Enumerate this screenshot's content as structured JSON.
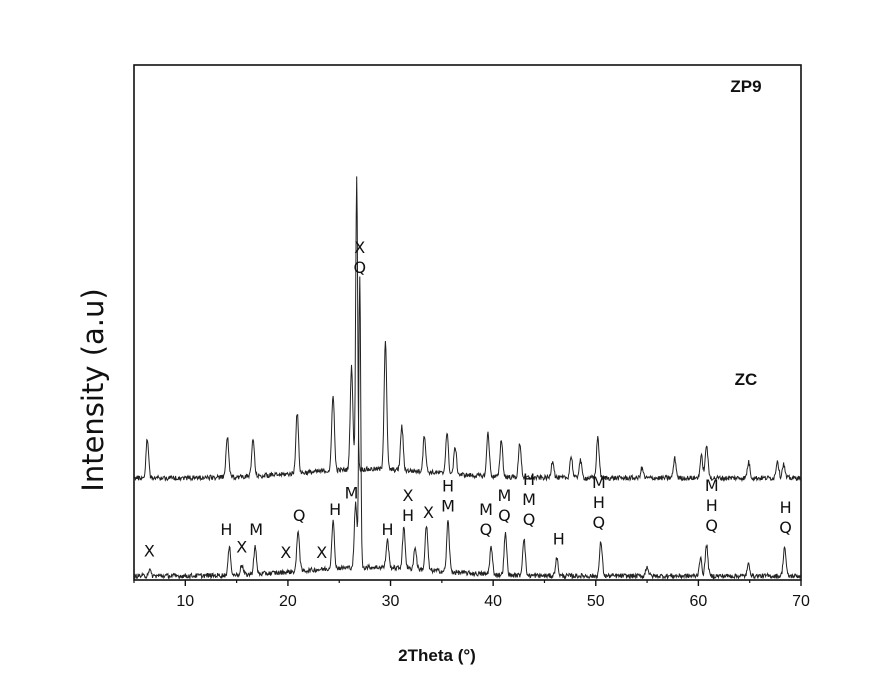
{
  "chart_data": {
    "type": "line",
    "xlabel": "2Theta (°)",
    "ylabel": "Intensity (a.u)",
    "xlim": [
      5,
      70
    ],
    "x_ticks": [
      10,
      20,
      30,
      40,
      50,
      60,
      70
    ],
    "y_ticks_shown": false,
    "grid": false,
    "series": [
      {
        "name": "ZP9",
        "baseline": 100,
        "peaks": [
          {
            "x": 6.3,
            "h": 40
          },
          {
            "x": 14.1,
            "h": 42
          },
          {
            "x": 16.6,
            "h": 38
          },
          {
            "x": 20.9,
            "h": 62
          },
          {
            "x": 24.4,
            "h": 78
          },
          {
            "x": 26.2,
            "h": 105
          },
          {
            "x": 26.7,
            "h": 300
          },
          {
            "x": 29.5,
            "h": 132
          },
          {
            "x": 31.1,
            "h": 45
          },
          {
            "x": 33.3,
            "h": 38
          },
          {
            "x": 35.5,
            "h": 42
          },
          {
            "x": 36.3,
            "h": 28
          },
          {
            "x": 39.5,
            "h": 45
          },
          {
            "x": 40.8,
            "h": 38
          },
          {
            "x": 42.6,
            "h": 35
          },
          {
            "x": 45.8,
            "h": 18
          },
          {
            "x": 47.6,
            "h": 22
          },
          {
            "x": 48.5,
            "h": 18
          },
          {
            "x": 50.2,
            "h": 42
          },
          {
            "x": 54.5,
            "h": 10
          },
          {
            "x": 57.7,
            "h": 20
          },
          {
            "x": 60.3,
            "h": 22
          },
          {
            "x": 60.8,
            "h": 34
          },
          {
            "x": 64.9,
            "h": 16
          },
          {
            "x": 67.7,
            "h": 18
          },
          {
            "x": 68.3,
            "h": 14
          }
        ]
      },
      {
        "name": "ZC",
        "baseline": 0,
        "peaks": [
          {
            "x": 6.5,
            "h": 6
          },
          {
            "x": 14.3,
            "h": 28
          },
          {
            "x": 15.5,
            "h": 10
          },
          {
            "x": 16.8,
            "h": 28
          },
          {
            "x": 21.0,
            "h": 42
          },
          {
            "x": 24.4,
            "h": 48
          },
          {
            "x": 26.6,
            "h": 65
          },
          {
            "x": 27.0,
            "h": 295
          },
          {
            "x": 29.7,
            "h": 28
          },
          {
            "x": 31.3,
            "h": 42
          },
          {
            "x": 32.4,
            "h": 22
          },
          {
            "x": 33.5,
            "h": 45
          },
          {
            "x": 35.6,
            "h": 52
          },
          {
            "x": 39.8,
            "h": 28
          },
          {
            "x": 41.2,
            "h": 42
          },
          {
            "x": 43.0,
            "h": 38
          },
          {
            "x": 46.2,
            "h": 18
          },
          {
            "x": 50.5,
            "h": 35
          },
          {
            "x": 55.0,
            "h": 10
          },
          {
            "x": 60.2,
            "h": 18
          },
          {
            "x": 60.8,
            "h": 32
          },
          {
            "x": 64.9,
            "h": 12
          },
          {
            "x": 68.4,
            "h": 30
          }
        ]
      }
    ],
    "annotations": [
      {
        "x": 6.5,
        "lines": [
          "X"
        ]
      },
      {
        "x": 14.0,
        "lines": [
          "H"
        ]
      },
      {
        "x": 15.5,
        "lines": [
          "X"
        ]
      },
      {
        "x": 16.9,
        "lines": [
          "M"
        ]
      },
      {
        "x": 19.8,
        "lines": [
          "X"
        ]
      },
      {
        "x": 21.1,
        "lines": [
          "Q"
        ]
      },
      {
        "x": 23.3,
        "lines": [
          "X"
        ]
      },
      {
        "x": 24.6,
        "lines": [
          "H"
        ]
      },
      {
        "x": 26.2,
        "lines": [
          "M"
        ]
      },
      {
        "x": 27.0,
        "lines": [
          "X",
          "Q"
        ]
      },
      {
        "x": 29.7,
        "lines": [
          "H"
        ]
      },
      {
        "x": 31.7,
        "lines": [
          "X",
          "H"
        ]
      },
      {
        "x": 33.7,
        "lines": [
          "X"
        ]
      },
      {
        "x": 35.6,
        "lines": [
          "H",
          "M"
        ]
      },
      {
        "x": 39.3,
        "lines": [
          "M",
          "Q"
        ]
      },
      {
        "x": 41.1,
        "lines": [
          "M",
          "Q"
        ]
      },
      {
        "x": 43.5,
        "lines": [
          "H",
          "M",
          "Q"
        ]
      },
      {
        "x": 46.4,
        "lines": [
          "H"
        ]
      },
      {
        "x": 50.3,
        "lines": [
          "M",
          "H",
          "Q"
        ]
      },
      {
        "x": 61.3,
        "lines": [
          "M",
          "H",
          "Q"
        ]
      },
      {
        "x": 68.5,
        "lines": [
          "H",
          "Q"
        ]
      }
    ]
  }
}
